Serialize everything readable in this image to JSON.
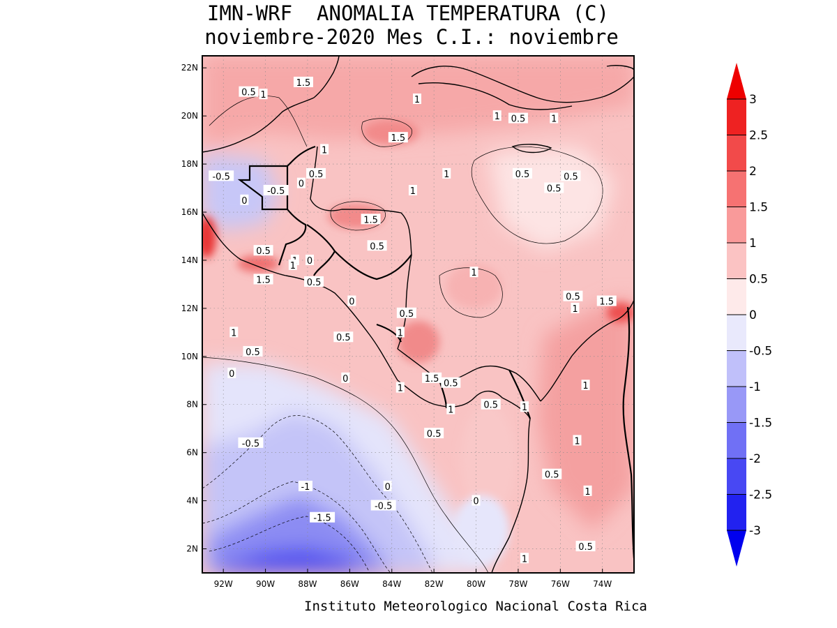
{
  "title": {
    "line1": "IMN-WRF  ANOMALIA TEMPERATURA (C)",
    "line2": "noviembre-2020 Mes C.I.: noviembre"
  },
  "credit": "Instituto Meteorologico Nacional Costa Rica",
  "map": {
    "lon_range": [
      -93.0,
      -72.5
    ],
    "lat_range": [
      1.0,
      22.5
    ],
    "lon_ticks": [
      {
        "value": -92,
        "label": "92W"
      },
      {
        "value": -90,
        "label": "90W"
      },
      {
        "value": -88,
        "label": "88W"
      },
      {
        "value": -86,
        "label": "86W"
      },
      {
        "value": -84,
        "label": "84W"
      },
      {
        "value": -82,
        "label": "82W"
      },
      {
        "value": -80,
        "label": "80W"
      },
      {
        "value": -78,
        "label": "78W"
      },
      {
        "value": -76,
        "label": "76W"
      },
      {
        "value": -74,
        "label": "74W"
      }
    ],
    "lat_ticks": [
      {
        "value": 2,
        "label": "2N"
      },
      {
        "value": 4,
        "label": "4N"
      },
      {
        "value": 6,
        "label": "6N"
      },
      {
        "value": 8,
        "label": "8N"
      },
      {
        "value": 10,
        "label": "10N"
      },
      {
        "value": 12,
        "label": "12N"
      },
      {
        "value": 14,
        "label": "14N"
      },
      {
        "value": 16,
        "label": "16N"
      },
      {
        "value": 18,
        "label": "18N"
      },
      {
        "value": 20,
        "label": "20N"
      },
      {
        "value": 22,
        "label": "22N"
      }
    ],
    "contour_labels": [
      {
        "lon": -88.2,
        "lat": 21.4,
        "text": "1.5"
      },
      {
        "lon": -90.8,
        "lat": 21.0,
        "text": "0.5"
      },
      {
        "lon": -90.1,
        "lat": 20.9,
        "text": "1"
      },
      {
        "lon": -82.8,
        "lat": 20.7,
        "text": "1"
      },
      {
        "lon": -79.0,
        "lat": 20.0,
        "text": "1"
      },
      {
        "lon": -78.0,
        "lat": 19.9,
        "text": "0.5"
      },
      {
        "lon": -76.3,
        "lat": 19.9,
        "text": "1"
      },
      {
        "lon": -83.7,
        "lat": 19.1,
        "text": "1.5"
      },
      {
        "lon": -87.2,
        "lat": 18.6,
        "text": "1"
      },
      {
        "lon": -92.1,
        "lat": 17.5,
        "text": "-0.5"
      },
      {
        "lon": -87.6,
        "lat": 17.6,
        "text": "0.5"
      },
      {
        "lon": -88.3,
        "lat": 17.2,
        "text": "0"
      },
      {
        "lon": -89.5,
        "lat": 16.9,
        "text": "-0.5"
      },
      {
        "lon": -91.0,
        "lat": 16.5,
        "text": "0"
      },
      {
        "lon": -81.4,
        "lat": 17.6,
        "text": "1"
      },
      {
        "lon": -77.8,
        "lat": 17.6,
        "text": "0.5"
      },
      {
        "lon": -76.3,
        "lat": 17.0,
        "text": "0.5"
      },
      {
        "lon": -75.5,
        "lat": 17.5,
        "text": "0.5"
      },
      {
        "lon": -83.0,
        "lat": 16.9,
        "text": "1"
      },
      {
        "lon": -85.0,
        "lat": 15.7,
        "text": "1.5"
      },
      {
        "lon": -84.7,
        "lat": 14.6,
        "text": "0.5"
      },
      {
        "lon": -90.1,
        "lat": 14.4,
        "text": "0.5"
      },
      {
        "lon": -88.6,
        "lat": 14.0,
        "text": "1"
      },
      {
        "lon": -87.9,
        "lat": 14.0,
        "text": "0"
      },
      {
        "lon": -88.7,
        "lat": 13.8,
        "text": "1"
      },
      {
        "lon": -87.7,
        "lat": 13.1,
        "text": "0.5"
      },
      {
        "lon": -90.1,
        "lat": 13.2,
        "text": "1.5"
      },
      {
        "lon": -80.1,
        "lat": 13.5,
        "text": "1"
      },
      {
        "lon": -75.4,
        "lat": 12.5,
        "text": "0.5"
      },
      {
        "lon": -75.3,
        "lat": 12.0,
        "text": "1"
      },
      {
        "lon": -73.8,
        "lat": 12.3,
        "text": "1.5"
      },
      {
        "lon": -85.9,
        "lat": 12.3,
        "text": "0"
      },
      {
        "lon": -83.3,
        "lat": 11.8,
        "text": "0.5"
      },
      {
        "lon": -83.6,
        "lat": 11.0,
        "text": "1"
      },
      {
        "lon": -91.5,
        "lat": 11.0,
        "text": "1"
      },
      {
        "lon": -86.3,
        "lat": 10.8,
        "text": "0.5"
      },
      {
        "lon": -90.6,
        "lat": 10.2,
        "text": "0.5"
      },
      {
        "lon": -91.6,
        "lat": 9.3,
        "text": "0"
      },
      {
        "lon": -86.2,
        "lat": 9.1,
        "text": "0"
      },
      {
        "lon": -82.1,
        "lat": 9.1,
        "text": "1.5"
      },
      {
        "lon": -81.2,
        "lat": 8.9,
        "text": "0.5"
      },
      {
        "lon": -83.6,
        "lat": 8.7,
        "text": "1"
      },
      {
        "lon": -74.8,
        "lat": 8.8,
        "text": "1"
      },
      {
        "lon": -81.2,
        "lat": 7.8,
        "text": "1"
      },
      {
        "lon": -79.3,
        "lat": 8.0,
        "text": "0.5"
      },
      {
        "lon": -77.7,
        "lat": 7.9,
        "text": "1"
      },
      {
        "lon": -82.0,
        "lat": 6.8,
        "text": "0.5"
      },
      {
        "lon": -90.7,
        "lat": 6.4,
        "text": "-0.5"
      },
      {
        "lon": -75.2,
        "lat": 6.5,
        "text": "1"
      },
      {
        "lon": -76.4,
        "lat": 5.1,
        "text": "0.5"
      },
      {
        "lon": -88.1,
        "lat": 4.6,
        "text": "-1"
      },
      {
        "lon": -84.2,
        "lat": 4.6,
        "text": "0"
      },
      {
        "lon": -74.7,
        "lat": 4.4,
        "text": "1"
      },
      {
        "lon": -80.0,
        "lat": 4.0,
        "text": "0"
      },
      {
        "lon": -84.4,
        "lat": 3.8,
        "text": "-0.5"
      },
      {
        "lon": -87.3,
        "lat": 3.3,
        "text": "-1.5"
      },
      {
        "lon": -74.8,
        "lat": 2.1,
        "text": "0.5"
      },
      {
        "lon": -77.7,
        "lat": 1.6,
        "text": "1"
      }
    ]
  },
  "colorbar": {
    "levels": [
      "3",
      "2.5",
      "2",
      "1.5",
      "1",
      "0.5",
      "0",
      "-0.5",
      "-1",
      "-1.5",
      "-2",
      "-2.5",
      "-3"
    ],
    "colors_top_to_bottom": [
      "#ee2222",
      "#f24a4a",
      "#f67272",
      "#f99a9a",
      "#fbc3c3",
      "#feeaea",
      "#e9e9fc",
      "#c0c0fa",
      "#9898f7",
      "#7070f5",
      "#4848f3",
      "#2222f0"
    ],
    "over_color": "#ee0000",
    "under_color": "#0000ee"
  },
  "colors": {
    "land_sea_default": "#f9c7c7",
    "border": "#000000"
  }
}
